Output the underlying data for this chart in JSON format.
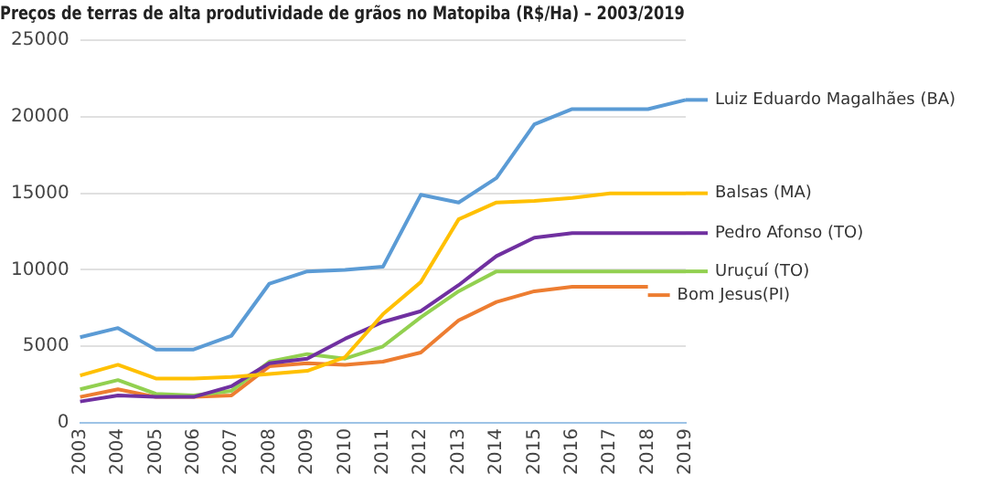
{
  "chart_data": {
    "type": "line",
    "title": "Preços de terras de alta produtividade de grãos no Matopiba (R$/Ha) – 2003/2019",
    "categories": [
      "2003",
      "2004",
      "2005",
      "2006",
      "2007",
      "2008",
      "2009",
      "2010",
      "2011",
      "2012",
      "2013",
      "2014",
      "2015",
      "2016",
      "2017",
      "2018",
      "2019"
    ],
    "series": [
      {
        "name": "Luiz Eduardo Magalhães (BA)",
        "color": "#5b9bd5",
        "values": [
          5600,
          6200,
          4800,
          4800,
          5700,
          9100,
          9900,
          10000,
          10200,
          14900,
          14400,
          16000,
          19500,
          20500,
          20500,
          20500,
          21100
        ]
      },
      {
        "name": "Balsas (MA)",
        "color": "#ffc000",
        "values": [
          3100,
          3800,
          2900,
          2900,
          3000,
          3200,
          3400,
          4300,
          7100,
          9200,
          13300,
          14400,
          14500,
          14700,
          15000,
          15000,
          15000
        ]
      },
      {
        "name": "Pedro Afonso (TO)",
        "color": "#7030a0",
        "values": [
          1400,
          1800,
          1700,
          1700,
          2400,
          3900,
          4200,
          5500,
          6600,
          7300,
          9000,
          10900,
          12100,
          12400,
          12400,
          12400,
          12400
        ]
      },
      {
        "name": "Uruçuí (TO)",
        "color": "#92d050",
        "values": [
          2200,
          2800,
          1900,
          1800,
          2100,
          4000,
          4500,
          4200,
          5000,
          6900,
          8600,
          9900,
          9900,
          9900,
          9900,
          9900,
          9900
        ]
      },
      {
        "name": "Bom Jesus(PI)",
        "color": "#ed7d31",
        "values": [
          1700,
          2200,
          1700,
          1700,
          1800,
          3700,
          3900,
          3800,
          4000,
          4600,
          6700,
          7900,
          8600,
          8900,
          8900,
          8900,
          null
        ]
      }
    ],
    "ylim": [
      0,
      25000
    ],
    "yticks": [
      0,
      5000,
      10000,
      15000,
      20000,
      25000
    ],
    "grid": "y",
    "legend": "right",
    "marker": "none",
    "line_style": "solid"
  }
}
